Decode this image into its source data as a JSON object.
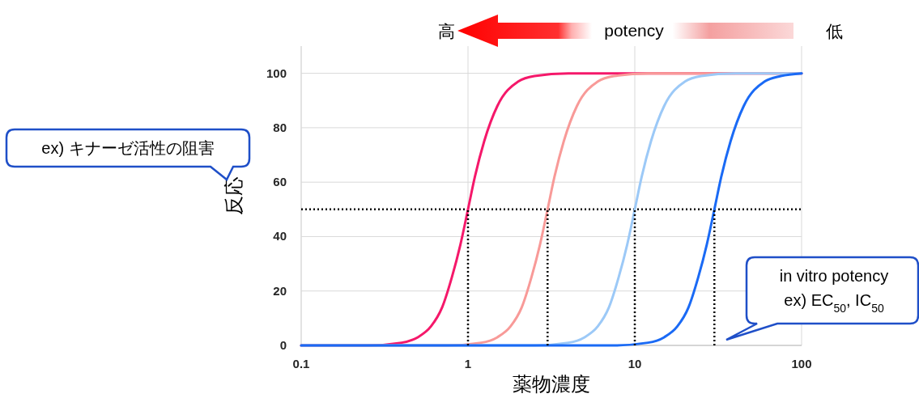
{
  "chart_data": {
    "type": "line",
    "xlabel": "薬物濃度",
    "ylabel": "反応",
    "log": "x",
    "xlim": [
      0.1,
      100
    ],
    "xticks": [
      0.1,
      1,
      10,
      100
    ],
    "ylim": [
      0,
      110
    ],
    "yticks": [
      0,
      20,
      40,
      60,
      80,
      100
    ],
    "grid": true,
    "marker": "none",
    "series": [
      {
        "color": "#f5186a",
        "x": [
          0.1,
          0.25,
          0.4,
          0.5,
          0.6,
          0.7,
          0.8,
          0.9,
          1,
          1.1,
          1.25,
          1.5,
          2,
          2.5,
          4,
          100
        ],
        "values": [
          0,
          0,
          1,
          3,
          7,
          14,
          25,
          37,
          50,
          62,
          75,
          88,
          97,
          99,
          100,
          100
        ]
      },
      {
        "color": "#f89a98",
        "x": [
          0.1,
          0.75,
          1.2,
          1.5,
          1.8,
          2.1,
          2.4,
          2.7,
          3,
          3.3,
          3.75,
          4.5,
          6,
          7.5,
          12,
          100
        ],
        "values": [
          0,
          0,
          1,
          3,
          7,
          14,
          25,
          37,
          50,
          62,
          75,
          88,
          97,
          99,
          100,
          100
        ]
      },
      {
        "color": "#9cc9f7",
        "x": [
          0.1,
          2.5,
          4,
          5,
          6,
          7,
          8,
          9,
          10,
          11,
          12.5,
          15,
          20,
          25,
          40,
          100
        ],
        "values": [
          0,
          0,
          1,
          3,
          7,
          14,
          25,
          37,
          50,
          62,
          75,
          88,
          97,
          99,
          100,
          100
        ]
      },
      {
        "color": "#1a6af5",
        "x": [
          0.1,
          7.5,
          12,
          15,
          18,
          21,
          24,
          27,
          30,
          33,
          37.5,
          45,
          60,
          75,
          100
        ],
        "values": [
          0,
          0,
          1,
          3,
          7,
          14,
          25,
          37,
          50,
          62,
          75,
          88,
          97,
          99,
          100
        ]
      },
      {
        "color": "#000000",
        "line_style": "dotted",
        "x": [
          1,
          1
        ],
        "values": [
          0,
          50
        ]
      },
      {
        "color": "#000000",
        "line_style": "dotted",
        "x": [
          3,
          3
        ],
        "values": [
          0,
          50
        ]
      },
      {
        "color": "#000000",
        "line_style": "dotted",
        "x": [
          10,
          10
        ],
        "values": [
          0,
          50
        ]
      },
      {
        "color": "#000000",
        "line_style": "dotted",
        "x": [
          30,
          30
        ],
        "values": [
          0,
          50
        ]
      }
    ],
    "ref_lines": [
      {
        "axis": "y",
        "value": 50,
        "color": "#000000",
        "line_style": "dotted"
      }
    ],
    "annotations": [
      "高",
      "potency",
      "低",
      "ex) キナーゼ活性の阻害",
      "in vitro potency\nex) EC$_{50}$, IC$_{50}$"
    ]
  }
}
